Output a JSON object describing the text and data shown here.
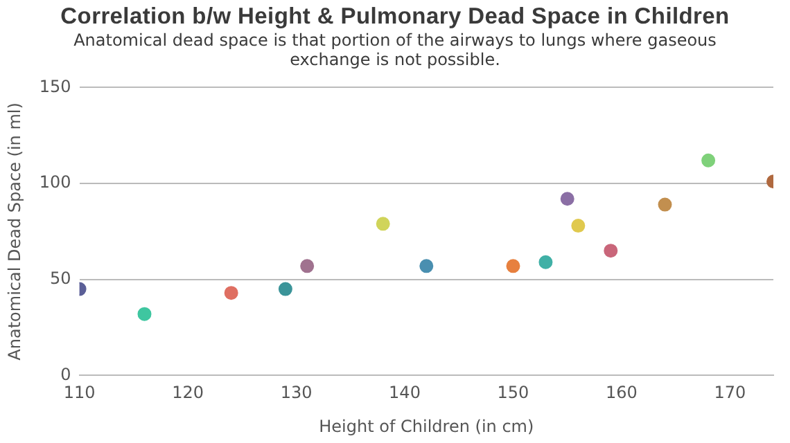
{
  "chart_data": {
    "type": "scatter",
    "title": "Correlation b/w Height & Pulmonary Dead Space in Children",
    "subtitle": "Anatomical dead space is that portion of the airways to lungs where gaseous exchange is not possible.",
    "xlabel": "Height of Children (in cm)",
    "ylabel": "Anatomical Dead Space (in ml)",
    "x": [
      110,
      116,
      124,
      129,
      131,
      138,
      142,
      150,
      153,
      155,
      156,
      159,
      164,
      168,
      174
    ],
    "values": [
      45,
      32,
      43,
      45,
      57,
      79,
      57,
      57,
      59,
      92,
      78,
      65,
      89,
      112,
      101
    ],
    "colors": [
      "#5b5f97",
      "#3fc6a0",
      "#df6f62",
      "#3b9499",
      "#a0728f",
      "#d0d45a",
      "#4a8fb0",
      "#e7803f",
      "#40b0a6",
      "#8b6fa5",
      "#e0c94e",
      "#c9667a",
      "#c28f4f",
      "#7fd17a",
      "#b0693f"
    ],
    "xlim": [
      110,
      174
    ],
    "xticks": [
      110,
      120,
      130,
      140,
      150,
      160,
      170
    ],
    "ylim": [
      0,
      150
    ],
    "yticks": [
      0,
      50,
      100,
      150
    ],
    "grid": "y",
    "legend": false,
    "marker": "circle"
  }
}
